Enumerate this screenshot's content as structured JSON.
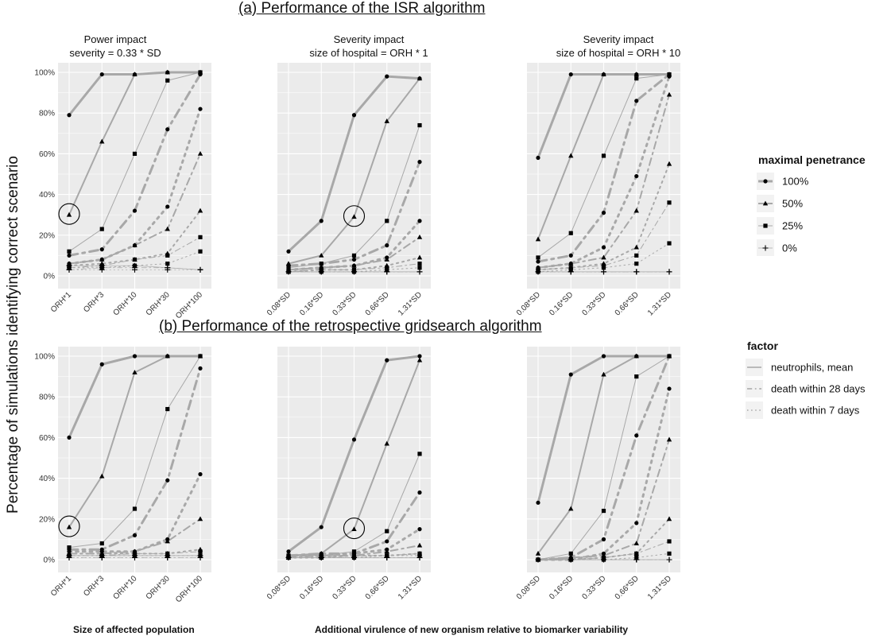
{
  "title_a": "(a) Performance of the ISR algorithm",
  "title_b": "(b) Performance of the retrospective gridsearch algorithm",
  "ylabel": "Percentage of simulations identifying correct scenario",
  "xlabel_left": "Size of affected population",
  "xlabel_right": "Additional virulence of new organism relative to biomarker variability",
  "legend": {
    "penetrance_title": "maximal penetrance",
    "penetrance": [
      {
        "label": "100%",
        "marker": "circle",
        "width": 3
      },
      {
        "label": "50%",
        "marker": "triangle",
        "width": 2
      },
      {
        "label": "25%",
        "marker": "square",
        "width": 1
      },
      {
        "label": "0%",
        "marker": "plus",
        "width": 0.6
      }
    ],
    "factor_title": "factor",
    "factors": [
      {
        "label": "neutrophils, mean",
        "dash": "solid"
      },
      {
        "label": "death within 28 days",
        "dash": "dashdot"
      },
      {
        "label": "death within 7 days",
        "dash": "dotted"
      }
    ]
  },
  "colors": {
    "panel_bg": "#ebebeb",
    "grid": "#ffffff",
    "line": "#a8a8a8",
    "marker": "#000000"
  },
  "chart_data": [
    {
      "type": "line",
      "row": "a",
      "col": 0,
      "title_lines": [
        "Power impact",
        "severity = 0.33 * SD"
      ],
      "categories": [
        "ORH*1",
        "ORH*3",
        "ORH*10",
        "ORH*30",
        "ORH*100"
      ],
      "yticks": [
        "0%",
        "20%",
        "40%",
        "60%",
        "80%",
        "100%"
      ],
      "ylim": [
        0,
        100
      ],
      "circle_index": 0,
      "circle_series": "neutrophils, mean|50%",
      "series": [
        {
          "factor": "neutrophils, mean",
          "penetrance": "100%",
          "values": [
            79,
            99,
            99,
            100,
            100
          ]
        },
        {
          "factor": "neutrophils, mean",
          "penetrance": "50%",
          "values": [
            30,
            66,
            99,
            100,
            100
          ]
        },
        {
          "factor": "neutrophils, mean",
          "penetrance": "25%",
          "values": [
            12,
            23,
            60,
            96,
            100
          ]
        },
        {
          "factor": "neutrophils, mean",
          "penetrance": "0%",
          "values": [
            5,
            5,
            5,
            4,
            3
          ]
        },
        {
          "factor": "death within 28 days",
          "penetrance": "100%",
          "values": [
            10,
            13,
            32,
            72,
            99
          ]
        },
        {
          "factor": "death within 28 days",
          "penetrance": "50%",
          "values": [
            6,
            8,
            15,
            23,
            60
          ]
        },
        {
          "factor": "death within 28 days",
          "penetrance": "25%",
          "values": [
            4,
            5,
            8,
            10,
            19
          ]
        },
        {
          "factor": "death within 28 days",
          "penetrance": "0%",
          "values": [
            3,
            4,
            4,
            4,
            3
          ]
        },
        {
          "factor": "death within 7 days",
          "penetrance": "100%",
          "values": [
            6,
            8,
            15,
            34,
            82
          ]
        },
        {
          "factor": "death within 7 days",
          "penetrance": "50%",
          "values": [
            5,
            6,
            8,
            11,
            32
          ]
        },
        {
          "factor": "death within 7 days",
          "penetrance": "25%",
          "values": [
            4,
            4,
            5,
            6,
            12
          ]
        },
        {
          "factor": "death within 7 days",
          "penetrance": "0%",
          "values": [
            3,
            3,
            3,
            3,
            3
          ]
        }
      ]
    },
    {
      "type": "line",
      "row": "a",
      "col": 1,
      "title_lines": [
        "Severity impact",
        "size of hospital = ORH * 1"
      ],
      "categories": [
        "0.08*SD",
        "0.16*SD",
        "0.33*SD",
        "0.66*SD",
        "1.31*SD"
      ],
      "yticks": [
        "0%",
        "20%",
        "40%",
        "60%",
        "80%",
        "100%"
      ],
      "ylim": [
        0,
        100
      ],
      "circle_index": 2,
      "circle_series": "neutrophils, mean|50%",
      "series": [
        {
          "factor": "neutrophils, mean",
          "penetrance": "100%",
          "values": [
            12,
            27,
            79,
            98,
            97
          ]
        },
        {
          "factor": "neutrophils, mean",
          "penetrance": "50%",
          "values": [
            6,
            10,
            29,
            76,
            97
          ]
        },
        {
          "factor": "neutrophils, mean",
          "penetrance": "25%",
          "values": [
            4,
            6,
            10,
            27,
            74
          ]
        },
        {
          "factor": "neutrophils, mean",
          "penetrance": "0%",
          "values": [
            2,
            2,
            2,
            2,
            2
          ]
        },
        {
          "factor": "death within 28 days",
          "penetrance": "100%",
          "values": [
            5,
            6,
            8,
            15,
            56
          ]
        },
        {
          "factor": "death within 28 days",
          "penetrance": "50%",
          "values": [
            3,
            4,
            5,
            8,
            19
          ]
        },
        {
          "factor": "death within 28 days",
          "penetrance": "25%",
          "values": [
            2,
            3,
            3,
            4,
            6
          ]
        },
        {
          "factor": "death within 28 days",
          "penetrance": "0%",
          "values": [
            2,
            2,
            2,
            2,
            2
          ]
        },
        {
          "factor": "death within 7 days",
          "penetrance": "100%",
          "values": [
            3,
            4,
            5,
            9,
            27
          ]
        },
        {
          "factor": "death within 7 days",
          "penetrance": "50%",
          "values": [
            2,
            3,
            3,
            5,
            9
          ]
        },
        {
          "factor": "death within 7 days",
          "penetrance": "25%",
          "values": [
            2,
            2,
            2,
            3,
            4
          ]
        },
        {
          "factor": "death within 7 days",
          "penetrance": "0%",
          "values": [
            2,
            2,
            2,
            2,
            2
          ]
        }
      ]
    },
    {
      "type": "line",
      "row": "a",
      "col": 2,
      "title_lines": [
        "Severity impact",
        "size of hospital = ORH * 10"
      ],
      "categories": [
        "0.08*SD",
        "0.16*SD",
        "0.33*SD",
        "0.66*SD",
        "1.31*SD"
      ],
      "yticks": [
        "0%",
        "20%",
        "40%",
        "60%",
        "80%",
        "100%"
      ],
      "ylim": [
        0,
        100
      ],
      "circle_index": null,
      "circle_series": "",
      "series": [
        {
          "factor": "neutrophils, mean",
          "penetrance": "100%",
          "values": [
            58,
            99,
            99,
            99,
            99
          ]
        },
        {
          "factor": "neutrophils, mean",
          "penetrance": "50%",
          "values": [
            18,
            59,
            99,
            99,
            99
          ]
        },
        {
          "factor": "neutrophils, mean",
          "penetrance": "25%",
          "values": [
            9,
            21,
            59,
            97,
            99
          ]
        },
        {
          "factor": "neutrophils, mean",
          "penetrance": "0%",
          "values": [
            2,
            2,
            2,
            2,
            2
          ]
        },
        {
          "factor": "death within 28 days",
          "penetrance": "100%",
          "values": [
            7,
            10,
            31,
            86,
            99
          ]
        },
        {
          "factor": "death within 28 days",
          "penetrance": "50%",
          "values": [
            4,
            6,
            9,
            32,
            89
          ]
        },
        {
          "factor": "death within 28 days",
          "penetrance": "25%",
          "values": [
            3,
            4,
            5,
            10,
            36
          ]
        },
        {
          "factor": "death within 28 days",
          "penetrance": "0%",
          "values": [
            2,
            2,
            2,
            2,
            2
          ]
        },
        {
          "factor": "death within 7 days",
          "penetrance": "100%",
          "values": [
            4,
            6,
            14,
            49,
            98
          ]
        },
        {
          "factor": "death within 7 days",
          "penetrance": "50%",
          "values": [
            3,
            4,
            6,
            14,
            55
          ]
        },
        {
          "factor": "death within 7 days",
          "penetrance": "25%",
          "values": [
            2,
            3,
            4,
            6,
            16
          ]
        },
        {
          "factor": "death within 7 days",
          "penetrance": "0%",
          "values": [
            2,
            2,
            2,
            2,
            2
          ]
        }
      ]
    },
    {
      "type": "line",
      "row": "b",
      "col": 0,
      "title_lines": [],
      "categories": [
        "ORH*1",
        "ORH*3",
        "ORH*10",
        "ORH*30",
        "ORH*100"
      ],
      "yticks": [
        "0%",
        "20%",
        "40%",
        "60%",
        "80%",
        "100%"
      ],
      "ylim": [
        0,
        100
      ],
      "circle_index": 0,
      "circle_series": "neutrophils, mean|50%",
      "series": [
        {
          "factor": "neutrophils, mean",
          "penetrance": "100%",
          "values": [
            60,
            96,
            100,
            100,
            100
          ]
        },
        {
          "factor": "neutrophils, mean",
          "penetrance": "50%",
          "values": [
            16,
            41,
            92,
            100,
            100
          ]
        },
        {
          "factor": "neutrophils, mean",
          "penetrance": "25%",
          "values": [
            6,
            8,
            25,
            74,
            100
          ]
        },
        {
          "factor": "neutrophils, mean",
          "penetrance": "0%",
          "values": [
            2,
            2,
            2,
            2,
            2
          ]
        },
        {
          "factor": "death within 28 days",
          "penetrance": "100%",
          "values": [
            5,
            5,
            12,
            39,
            94
          ]
        },
        {
          "factor": "death within 28 days",
          "penetrance": "50%",
          "values": [
            3,
            3,
            4,
            9,
            20
          ]
        },
        {
          "factor": "death within 28 days",
          "penetrance": "25%",
          "values": [
            2,
            2,
            3,
            3,
            4
          ]
        },
        {
          "factor": "death within 28 days",
          "penetrance": "0%",
          "values": [
            1,
            1,
            1,
            1,
            1
          ]
        },
        {
          "factor": "death within 7 days",
          "penetrance": "100%",
          "values": [
            4,
            4,
            4,
            10,
            42
          ]
        },
        {
          "factor": "death within 7 days",
          "penetrance": "50%",
          "values": [
            3,
            3,
            3,
            3,
            5
          ]
        },
        {
          "factor": "death within 7 days",
          "penetrance": "25%",
          "values": [
            2,
            2,
            2,
            2,
            2
          ]
        },
        {
          "factor": "death within 7 days",
          "penetrance": "0%",
          "values": [
            1,
            1,
            1,
            1,
            1
          ]
        }
      ]
    },
    {
      "type": "line",
      "row": "b",
      "col": 1,
      "title_lines": [],
      "categories": [
        "0.08*SD",
        "0.16*SD",
        "0.33*SD",
        "0.66*SD",
        "1.31*SD"
      ],
      "yticks": [
        "0%",
        "20%",
        "40%",
        "60%",
        "80%",
        "100%"
      ],
      "ylim": [
        0,
        100
      ],
      "circle_index": 2,
      "circle_series": "neutrophils, mean|50%",
      "series": [
        {
          "factor": "neutrophils, mean",
          "penetrance": "100%",
          "values": [
            4,
            16,
            59,
            98,
            100
          ]
        },
        {
          "factor": "neutrophils, mean",
          "penetrance": "50%",
          "values": [
            2,
            3,
            15,
            57,
            98
          ]
        },
        {
          "factor": "neutrophils, mean",
          "penetrance": "25%",
          "values": [
            2,
            2,
            4,
            14,
            52
          ]
        },
        {
          "factor": "neutrophils, mean",
          "penetrance": "0%",
          "values": [
            1,
            1,
            1,
            1,
            1
          ]
        },
        {
          "factor": "death within 28 days",
          "penetrance": "100%",
          "values": [
            2,
            3,
            3,
            9,
            33
          ]
        },
        {
          "factor": "death within 28 days",
          "penetrance": "50%",
          "values": [
            1,
            2,
            2,
            4,
            7
          ]
        },
        {
          "factor": "death within 28 days",
          "penetrance": "25%",
          "values": [
            1,
            1,
            2,
            2,
            3
          ]
        },
        {
          "factor": "death within 28 days",
          "penetrance": "0%",
          "values": [
            1,
            1,
            1,
            1,
            1
          ]
        },
        {
          "factor": "death within 7 days",
          "penetrance": "100%",
          "values": [
            2,
            2,
            3,
            5,
            15
          ]
        },
        {
          "factor": "death within 7 days",
          "penetrance": "50%",
          "values": [
            1,
            1,
            2,
            2,
            3
          ]
        },
        {
          "factor": "death within 7 days",
          "penetrance": "25%",
          "values": [
            1,
            1,
            1,
            2,
            2
          ]
        },
        {
          "factor": "death within 7 days",
          "penetrance": "0%",
          "values": [
            1,
            1,
            1,
            1,
            1
          ]
        }
      ]
    },
    {
      "type": "line",
      "row": "b",
      "col": 2,
      "title_lines": [],
      "categories": [
        "0.08*SD",
        "0.16*SD",
        "0.33*SD",
        "0.66*SD",
        "1.31*SD"
      ],
      "yticks": [
        "0%",
        "20%",
        "40%",
        "60%",
        "80%",
        "100%"
      ],
      "ylim": [
        0,
        100
      ],
      "circle_index": null,
      "circle_series": "",
      "series": [
        {
          "factor": "neutrophils, mean",
          "penetrance": "100%",
          "values": [
            28,
            91,
            100,
            100,
            100
          ]
        },
        {
          "factor": "neutrophils, mean",
          "penetrance": "50%",
          "values": [
            3,
            25,
            91,
            100,
            100
          ]
        },
        {
          "factor": "neutrophils, mean",
          "penetrance": "25%",
          "values": [
            0,
            3,
            24,
            90,
            100
          ]
        },
        {
          "factor": "neutrophils, mean",
          "penetrance": "0%",
          "values": [
            0,
            0,
            0,
            0,
            0
          ]
        },
        {
          "factor": "death within 28 days",
          "penetrance": "100%",
          "values": [
            0,
            1,
            10,
            61,
            100
          ]
        },
        {
          "factor": "death within 28 days",
          "penetrance": "50%",
          "values": [
            0,
            1,
            2,
            8,
            59
          ]
        },
        {
          "factor": "death within 28 days",
          "penetrance": "25%",
          "values": [
            0,
            0,
            1,
            3,
            9
          ]
        },
        {
          "factor": "death within 28 days",
          "penetrance": "0%",
          "values": [
            0,
            0,
            0,
            0,
            0
          ]
        },
        {
          "factor": "death within 7 days",
          "penetrance": "100%",
          "values": [
            0,
            0,
            3,
            18,
            84
          ]
        },
        {
          "factor": "death within 7 days",
          "penetrance": "50%",
          "values": [
            0,
            0,
            1,
            3,
            20
          ]
        },
        {
          "factor": "death within 7 days",
          "penetrance": "25%",
          "values": [
            0,
            0,
            0,
            1,
            3
          ]
        },
        {
          "factor": "death within 7 days",
          "penetrance": "0%",
          "values": [
            0,
            0,
            0,
            0,
            0
          ]
        }
      ]
    }
  ]
}
